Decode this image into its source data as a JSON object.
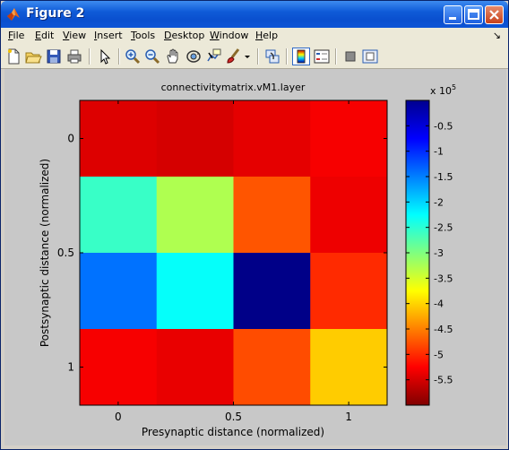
{
  "window": {
    "title": "Figure 2",
    "controls": [
      "minimize",
      "maximize",
      "close"
    ]
  },
  "menubar": {
    "items": [
      {
        "label": "File",
        "accel": "F",
        "rest": "ile"
      },
      {
        "label": "Edit",
        "accel": "E",
        "rest": "dit"
      },
      {
        "label": "View",
        "accel": "V",
        "rest": "iew"
      },
      {
        "label": "Insert",
        "accel": "I",
        "rest": "nsert"
      },
      {
        "label": "Tools",
        "accel": "T",
        "rest": "ools"
      },
      {
        "label": "Desktop",
        "accel": "D",
        "rest": "esktop"
      },
      {
        "label": "Window",
        "accel": "W",
        "rest": "indow"
      },
      {
        "label": "Help",
        "accel": "H",
        "rest": "elp"
      }
    ],
    "overflow": "↘"
  },
  "toolbar": {
    "tools": [
      "new-figure-icon",
      "open-file-icon",
      "save-icon",
      "print-icon",
      "edit-plot-arrow-icon",
      "zoom-in-icon",
      "zoom-out-icon",
      "pan-hand-icon",
      "rotate-3d-icon",
      "data-cursor-icon",
      "brush-icon",
      "brush-dropdown-icon",
      "link-plot-icon",
      "colorbar-icon",
      "legend-icon",
      "hide-plot-tools-icon",
      "show-plot-tools-icon"
    ]
  },
  "chart_data": {
    "type": "heatmap",
    "title": "connectivitymatrix.vM1.layer",
    "xlabel": "Presynaptic distance (normalized)",
    "ylabel": "Postsynaptic distance (normalized)",
    "x_ticks": [
      "0",
      "0.5",
      "1"
    ],
    "y_ticks": [
      "0",
      "0.5",
      "1"
    ],
    "x": [
      0,
      0.333,
      0.667,
      1
    ],
    "y": [
      0,
      0.333,
      0.667,
      1
    ],
    "values": [
      [
        -55000,
        -50000,
        -60000,
        -70000
      ],
      [
        -342000,
        -272000,
        -125000,
        -65000
      ],
      [
        -458000,
        -372000,
        -595000,
        -100000
      ],
      [
        -70000,
        -62000,
        -120000,
        -195000
      ]
    ],
    "colormap": "jet",
    "clim": [
      -600000,
      0
    ],
    "colorbar": {
      "exponent_label": "x 10",
      "exponent": "5",
      "tick_values": [
        -0.5,
        -1,
        -1.5,
        -2,
        -2.5,
        -3,
        -3.5,
        -4,
        -4.5,
        -5,
        -5.5
      ],
      "tick_labels": [
        "-0.5",
        "-1",
        "-1.5",
        "-2",
        "-2.5",
        "-3",
        "-3.5",
        "-4",
        "-4.5",
        "-5",
        "-5.5"
      ]
    }
  }
}
